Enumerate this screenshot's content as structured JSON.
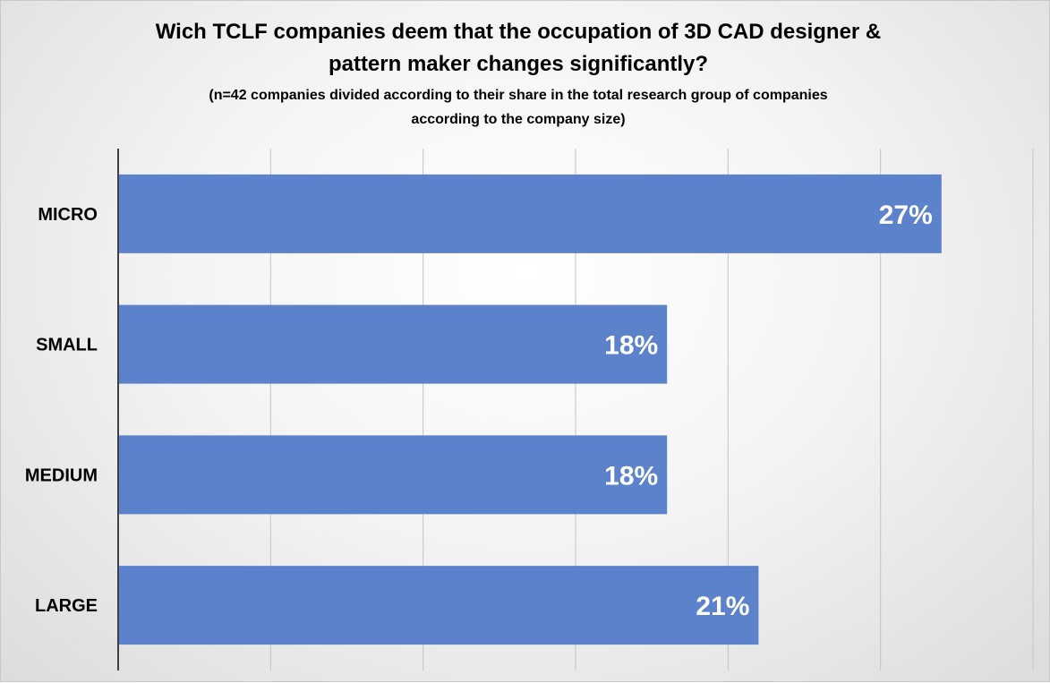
{
  "chart_data": {
    "type": "bar",
    "orientation": "horizontal",
    "title": "Wich TCLF companies deem that the occupation of 3D CAD designer & pattern maker changes significantly?",
    "title_lines": [
      "Wich TCLF companies deem that the occupation of 3D CAD designer &",
      "pattern maker changes significantly?"
    ],
    "subtitle_lines": [
      "(n=42 companies divided according to their share in the total research group of companies",
      "according to the company size)"
    ],
    "categories": [
      "MICRO",
      "SMALL",
      "MEDIUM",
      "LARGE"
    ],
    "values": [
      27,
      18,
      18,
      21
    ],
    "data_labels": [
      "27%",
      "18%",
      "18%",
      "21%"
    ],
    "xlim": [
      0,
      30
    ],
    "grid": true,
    "legend": "none",
    "colors": {
      "bar": "#5b82cb"
    }
  }
}
